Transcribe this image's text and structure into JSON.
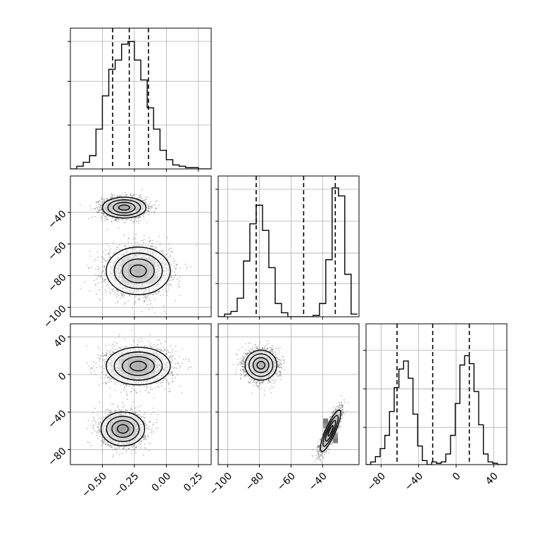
{
  "chart_data": {
    "type": "corner",
    "title": "",
    "grid": true,
    "colors": {
      "ink": "#000000",
      "grid": "#b0b0b0",
      "scatter": "#6e6e6e"
    },
    "params": [
      {
        "range": [
          -0.75,
          0.35
        ],
        "ticks": [
          -0.5,
          -0.25,
          0.0,
          0.25
        ],
        "tick_labels": [
          "−0.50",
          "−0.25",
          "0.00",
          "0.25"
        ]
      },
      {
        "range": [
          -106,
          -17
        ],
        "ticks": [
          -100,
          -80,
          -60,
          -40
        ],
        "tick_labels": [
          "−100",
          "−80",
          "−60",
          "−40"
        ]
      },
      {
        "range": [
          -96,
          54
        ],
        "ticks": [
          -80,
          -40,
          0,
          40
        ],
        "tick_labels": [
          "−80",
          "−40",
          "0",
          "40"
        ]
      }
    ],
    "quantiles": [
      [
        -0.42,
        -0.29,
        -0.14
      ],
      [
        -82,
        -52,
        -32
      ],
      [
        -63,
        -25,
        14
      ]
    ],
    "histograms": [
      {
        "bin_edges": [
          -0.75,
          -0.7,
          -0.65,
          -0.6,
          -0.55,
          -0.5,
          -0.45,
          -0.4,
          -0.35,
          -0.3,
          -0.25,
          -0.2,
          -0.15,
          -0.1,
          -0.05,
          0.0,
          0.05,
          0.1,
          0.15,
          0.2,
          0.25,
          0.3,
          0.35
        ],
        "counts": [
          0.0,
          0.02,
          0.05,
          0.1,
          0.3,
          0.55,
          0.75,
          0.82,
          0.94,
          0.96,
          0.82,
          0.67,
          0.46,
          0.3,
          0.14,
          0.07,
          0.03,
          0.02,
          0.01,
          0.01,
          0.0,
          0.0
        ],
        "ylim": [
          0,
          1.06
        ],
        "y_gridlines": [
          0.33,
          0.66,
          0.96
        ]
      },
      {
        "bin_edges": [
          -106,
          -102,
          -98,
          -94,
          -90,
          -86,
          -82,
          -78,
          -74,
          -70,
          -66,
          -62,
          -58,
          -54,
          -50,
          -46,
          -42,
          -38,
          -34,
          -30,
          -26,
          -22,
          -18
        ],
        "counts": [
          0.0,
          0.02,
          0.04,
          0.14,
          0.42,
          0.7,
          0.84,
          0.65,
          0.37,
          0.1,
          0.03,
          0.0,
          0.0,
          0.0,
          0.0,
          0.01,
          0.1,
          0.43,
          0.97,
          0.91,
          0.32,
          0.02
        ],
        "ylim": [
          0,
          1.06
        ],
        "y_gridlines": [
          0.25,
          0.48,
          0.72,
          0.96
        ]
      },
      {
        "bin_edges": [
          -96,
          -91,
          -86,
          -81,
          -76,
          -71,
          -66,
          -61,
          -56,
          -51,
          -46,
          -41,
          -36,
          -31,
          -26,
          -21,
          -16,
          -11,
          -6,
          -1,
          4,
          9,
          14,
          19,
          24,
          29,
          34,
          39,
          44,
          49,
          54
        ],
        "counts": [
          0.0,
          0.02,
          0.06,
          0.12,
          0.22,
          0.4,
          0.58,
          0.72,
          0.78,
          0.65,
          0.38,
          0.14,
          0.03,
          0.0,
          0.02,
          0.01,
          0.02,
          0.08,
          0.22,
          0.46,
          0.75,
          0.82,
          0.76,
          0.55,
          0.3,
          0.08,
          0.02,
          0.01,
          0.0,
          0.0
        ],
        "ylim": [
          0,
          1.06
        ],
        "y_gridlines": [
          0.28,
          0.57,
          0.86
        ]
      }
    ],
    "clusters": [
      {
        "x": [
          -0.33,
          -0.22,
          -0.33
        ],
        "y": [
          -37,
          -77,
          -77
        ],
        "z": [
          -58,
          -22,
          -58
        ],
        "sx": [
          0.09,
          0.13,
          0.09
        ],
        "sy": [
          3.5,
          8,
          8
        ],
        "sz": [
          9,
          11,
          9
        ],
        "weight": 0.5
      },
      {
        "x": [
          -0.33,
          -0.22,
          -0.22
        ],
        "y": [
          -37,
          -77,
          -77
        ],
        "z": [
          -58,
          9,
          9
        ],
        "sx": [
          0.09,
          0.13,
          0.13
        ],
        "sy": [
          3.5,
          8,
          8
        ],
        "sz": [
          9,
          11,
          11
        ],
        "weight": 0.5
      }
    ],
    "panels_2d": [
      {
        "x_param": 0,
        "y_param": 1,
        "blobs": [
          {
            "cx": -0.33,
            "cy": -37,
            "sx": 0.085,
            "sy": 3.3,
            "rho": 0.0,
            "n": 2200,
            "peak": 0.45
          },
          {
            "cx": -0.22,
            "cy": -77,
            "sx": 0.125,
            "sy": 7.5,
            "rho": 0.0,
            "n": 2200,
            "peak": 0.22
          }
        ]
      },
      {
        "x_param": 0,
        "y_param": 2,
        "blobs": [
          {
            "cx": -0.22,
            "cy": 9,
            "sx": 0.125,
            "sy": 10,
            "rho": 0.0,
            "n": 2200,
            "peak": 0.4
          },
          {
            "cx": -0.34,
            "cy": -58,
            "sx": 0.085,
            "sy": 9,
            "rho": 0.0,
            "n": 2200,
            "peak": 0.6
          }
        ]
      },
      {
        "x_param": 1,
        "y_param": 2,
        "blobs": [
          {
            "cx": -79,
            "cy": 10,
            "sx": 5,
            "sy": 8,
            "rho": 0.0,
            "n": 2200,
            "peak": 0.25
          },
          {
            "cx": -35,
            "cy": -60,
            "sx": 3.2,
            "sy": 11,
            "rho": 0.85,
            "n": 2200,
            "peak": 0.7
          }
        ]
      }
    ]
  }
}
